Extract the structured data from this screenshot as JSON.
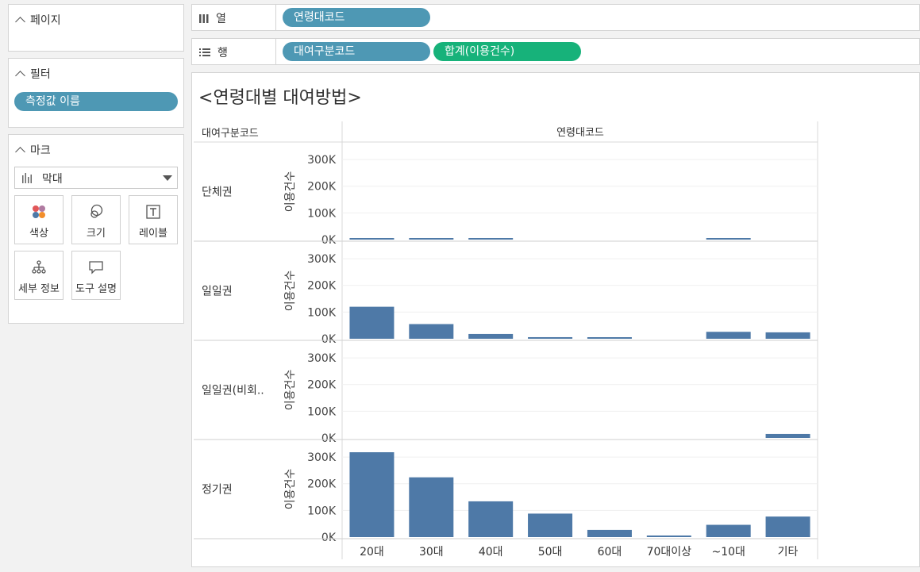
{
  "pages_card": {
    "title": "페이지"
  },
  "filters_card": {
    "title": "필터",
    "pill": "측정값 이름"
  },
  "marks_card": {
    "title": "마크",
    "mark_type": "막대",
    "buttons": [
      {
        "label": "색상",
        "icon": "color-dots-icon"
      },
      {
        "label": "크기",
        "icon": "size-circles-icon"
      },
      {
        "label": "레이블",
        "icon": "label-text-icon"
      },
      {
        "label": "세부 정보",
        "icon": "detail-tree-icon"
      },
      {
        "label": "도구 설명",
        "icon": "tooltip-bubble-icon"
      }
    ]
  },
  "columns_shelf": {
    "label": "열",
    "pill": "연령대코드"
  },
  "rows_shelf": {
    "label": "행",
    "pills": [
      "대여구분코드",
      "합계(이용건수)"
    ]
  },
  "colors": {
    "pill_blue": "#4e98b4",
    "pill_green": "#17b27a",
    "bar": "#4e79a7"
  },
  "chart_data": {
    "type": "bar",
    "title": "<연령대별 대여방법>",
    "row_header": "대여구분코드",
    "column_header": "연령대코드",
    "ylabel": "이용건수",
    "ylim": [
      0,
      330000
    ],
    "yticks": [
      0,
      100000,
      200000,
      300000
    ],
    "ytick_labels": [
      "0K",
      "100K",
      "200K",
      "300K"
    ],
    "categories": [
      "20대",
      "30대",
      "40대",
      "50대",
      "60대",
      "70대이상",
      "~10대",
      "기타"
    ],
    "series": [
      {
        "name": "단체권",
        "values": [
          2000,
          2000,
          5000,
          0,
          0,
          0,
          2000,
          0
        ]
      },
      {
        "name": "일일권",
        "values": [
          120000,
          55000,
          18000,
          6000,
          3000,
          0,
          26000,
          24000
        ]
      },
      {
        "name": "일일권(비회..",
        "values": [
          0,
          0,
          0,
          0,
          0,
          0,
          0,
          15000
        ]
      },
      {
        "name": "정기권",
        "values": [
          318000,
          224000,
          134000,
          88000,
          27000,
          3000,
          46000,
          77000
        ]
      }
    ]
  }
}
